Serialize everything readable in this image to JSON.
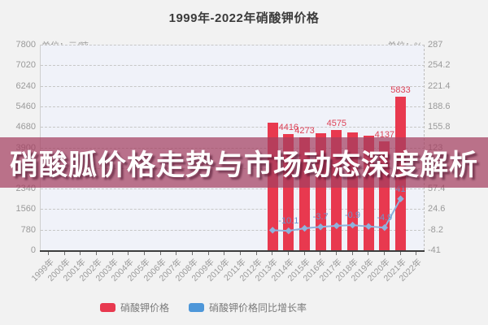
{
  "banner": {
    "text": "硝酸胍价格走势与市场动态深度解析",
    "bg_color": "rgba(163,62,95,0.72)",
    "text_color": "#ffffff"
  },
  "chart_data": {
    "type": "bar+line",
    "title": "1999年-2022年硝酸钾价格",
    "categories": [
      "1999年",
      "2000年",
      "2001年",
      "2002年",
      "2003年",
      "2004年",
      "2005年",
      "2006年",
      "2007年",
      "2008年",
      "2009年",
      "2010年",
      "2011年",
      "2012年",
      "2013年",
      "2014年",
      "2015年",
      "2016年",
      "2017年",
      "2018年",
      "2019年",
      "2020年",
      "2021年",
      "2022年"
    ],
    "left_axis": {
      "unit": "单位：元/吨",
      "min": 0,
      "max": 7800,
      "ticks": [
        "7800",
        "7020",
        "6240",
        "5460",
        "4680",
        "3900",
        "3120",
        "2340",
        "1560",
        "780",
        "0"
      ]
    },
    "right_axis": {
      "unit": "单位：%",
      "min": -41,
      "max": 287,
      "ticks": [
        "287",
        "254.2",
        "221.4",
        "188.6",
        "155.8",
        "123",
        "90.2",
        "57.4",
        "24.6",
        "-8.2",
        "-41"
      ]
    },
    "grid": {
      "horizontal_dashed": true,
      "plot_bg": "#f0f2f9",
      "gridline_color": "#c7c7c7"
    },
    "series": [
      {
        "name": "硝酸钾价格",
        "type": "bar",
        "color": "#e8394f",
        "label_color": "#dd4257",
        "data": [
          {
            "year": "2013年",
            "value": 4850,
            "label": ""
          },
          {
            "year": "2014年",
            "value": 4416,
            "label": "4416"
          },
          {
            "year": "2015年",
            "value": 4273,
            "label": "4273"
          },
          {
            "year": "2016年",
            "value": 4430,
            "label": ""
          },
          {
            "year": "2017年",
            "value": 4575,
            "label": "4575"
          },
          {
            "year": "2018年",
            "value": 4480,
            "label": ""
          },
          {
            "year": "2019年",
            "value": 4340,
            "label": ""
          },
          {
            "year": "2020年",
            "value": 4137,
            "label": "4137"
          },
          {
            "year": "2021年",
            "value": 5833,
            "label": "5833"
          }
        ]
      },
      {
        "name": "硝酸钾价格同比增长率",
        "type": "line",
        "color": "#8fb3dc",
        "label_color": "#6b97cf",
        "data": [
          {
            "year": "2013年",
            "value": -9,
            "label": ""
          },
          {
            "year": "2014年",
            "value": -10.1,
            "label": "-10.1"
          },
          {
            "year": "2015年",
            "value": -6,
            "label": ""
          },
          {
            "year": "2016年",
            "value": -3.7,
            "label": "-3.7"
          },
          {
            "year": "2017年",
            "value": -2,
            "label": ""
          },
          {
            "year": "2018年",
            "value": -0.9,
            "label": "-0.9"
          },
          {
            "year": "2019年",
            "value": -3,
            "label": ""
          },
          {
            "year": "2020年",
            "value": -4.9,
            "label": "-4.9"
          },
          {
            "year": "2021年",
            "value": 41,
            "label": "41"
          }
        ]
      }
    ],
    "legend": [
      {
        "label": "硝酸钾价格",
        "color": "#e8394f"
      },
      {
        "label": "硝酸钾价格同比增长率",
        "color": "#4e97d9"
      }
    ]
  }
}
